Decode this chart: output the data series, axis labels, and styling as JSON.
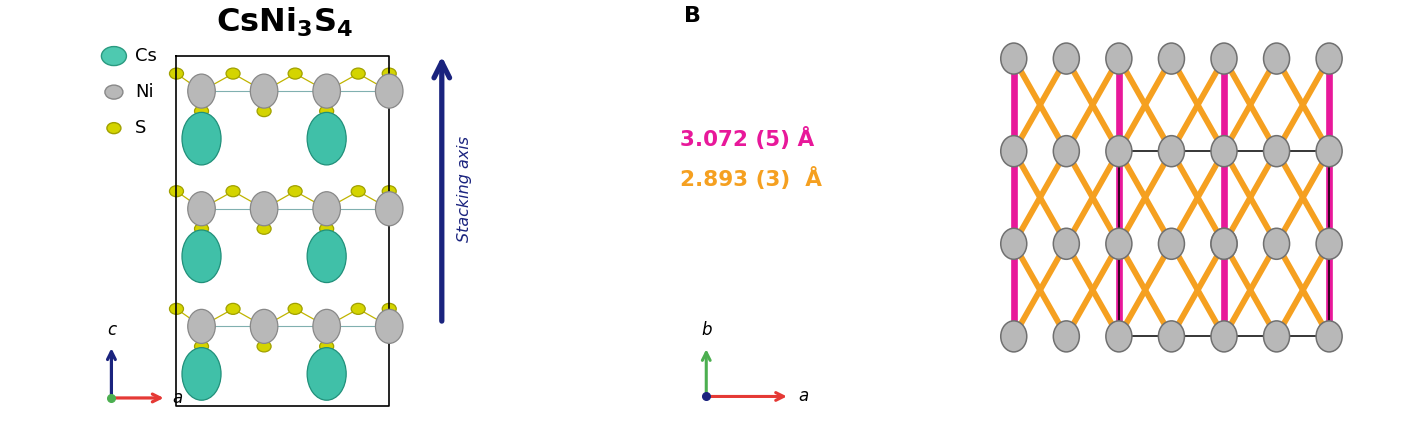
{
  "title_formula": "CsNi$_3$S$_4$",
  "legend_cs_color": "#4ec9b0",
  "legend_ni_color": "#b8b8b8",
  "legend_s_color": "#d4d400",
  "legend_cs_edge": "#2a9a80",
  "legend_ni_edge": "#888888",
  "legend_s_edge": "#a0a000",
  "stacking_color": "#1a237e",
  "stacking_label": "Stacking axis",
  "bond_pink": "#e8189a",
  "bond_orange": "#f5a020",
  "bond_pink_label": "3.072 (5) Å",
  "bond_orange_label": "2.893 (3)  Å",
  "axis_blue": "#1a237e",
  "axis_red": "#e53935",
  "axis_green": "#4caf50",
  "ni_grad_light": "#e8e8e8",
  "ni_grad_dark": "#909090",
  "ni_edge_col": "#707070",
  "cs_color": "#40c0a8",
  "cs_edge": "#20907a",
  "s_color": "#d8d800",
  "s_edge": "#a8a800",
  "background": "#ffffff"
}
